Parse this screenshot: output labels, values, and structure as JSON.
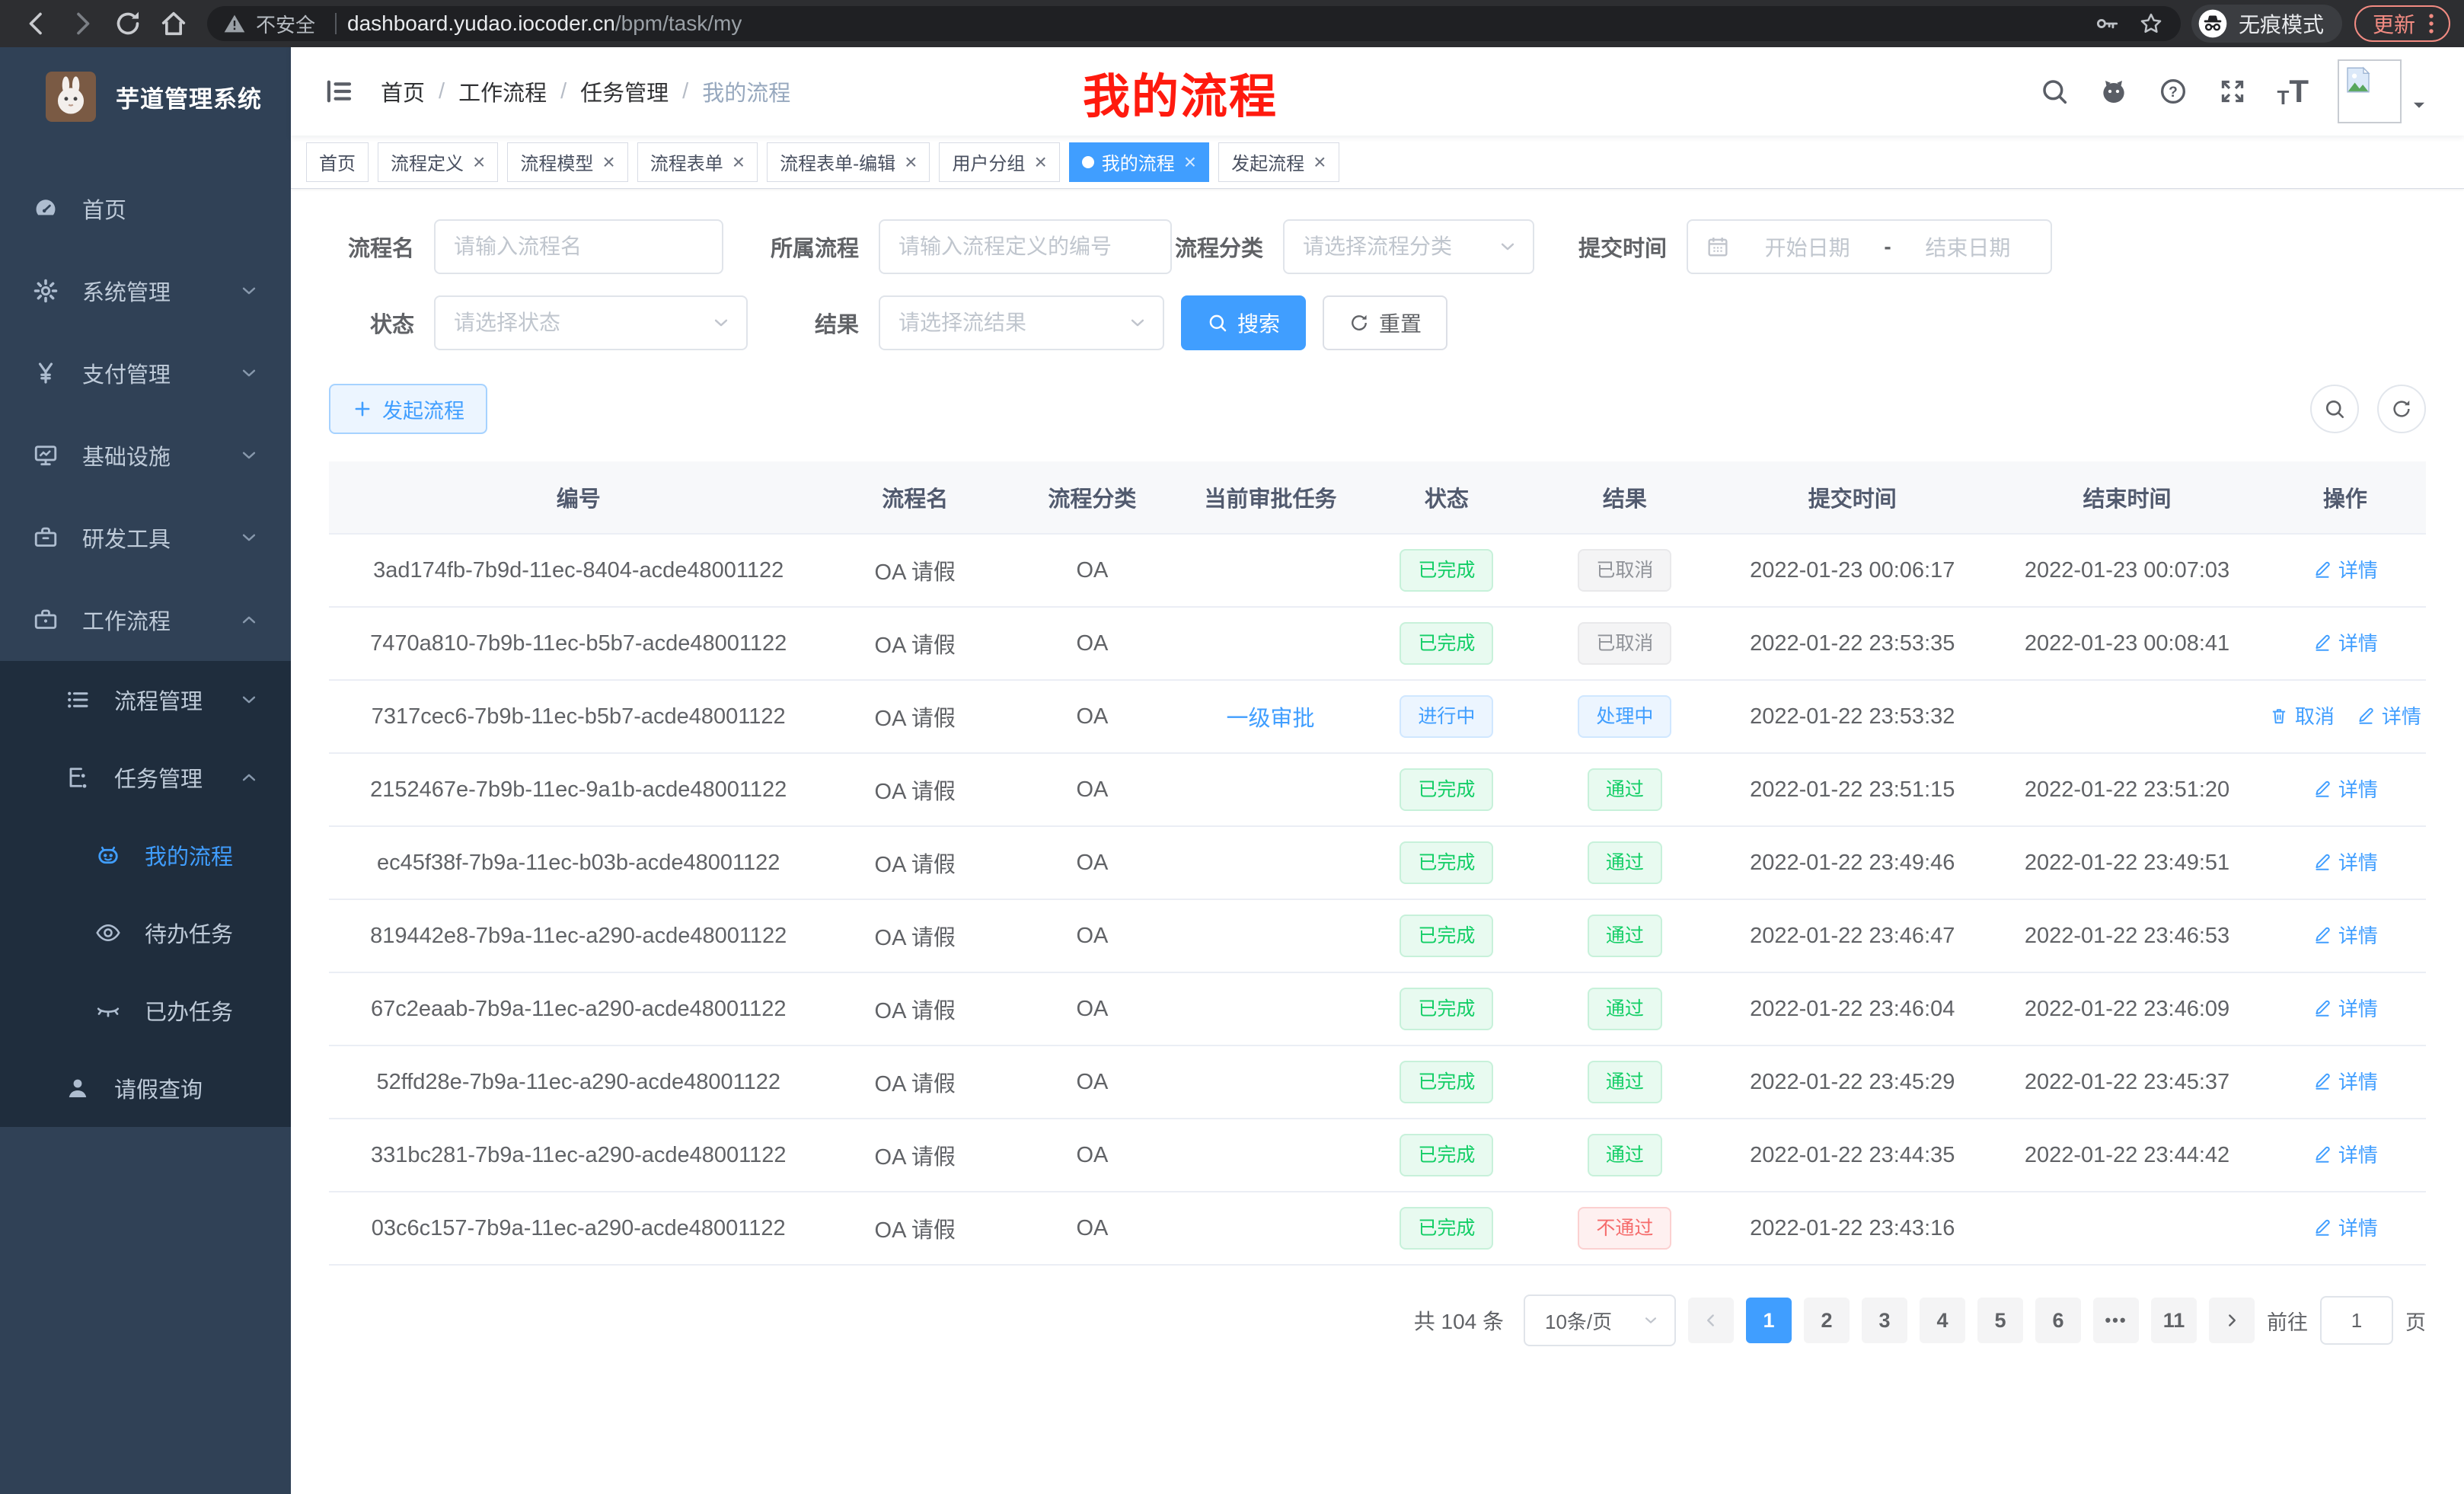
{
  "browser": {
    "security_label": "不安全",
    "url_host": "dashboard.yudao.iocoder.cn",
    "url_path": "/bpm/task/my",
    "incognito_label": "无痕模式",
    "update_label": "更新"
  },
  "annotation": {
    "text": "我的流程"
  },
  "colors": {
    "accent": "#409eff",
    "success": "#13ce66",
    "info": "#909399",
    "danger": "#f56c6c",
    "sidebar_bg": "#304156",
    "submenu_bg": "#1f2d3d",
    "annotation_red": "#ff1a0e",
    "update_red": "#f28b82"
  },
  "sidebar": {
    "app_title": "芋道管理系统",
    "items": [
      {
        "icon": "dashboard-icon",
        "label": "首页",
        "level": 0
      },
      {
        "icon": "gear-icon",
        "label": "系统管理",
        "level": 0,
        "arrow": "down"
      },
      {
        "icon": "yen-icon",
        "label": "支付管理",
        "level": 0,
        "arrow": "down"
      },
      {
        "icon": "infra-icon",
        "label": "基础设施",
        "level": 0,
        "arrow": "down"
      },
      {
        "icon": "tools-icon",
        "label": "研发工具",
        "level": 0,
        "arrow": "down"
      },
      {
        "icon": "workflow-icon",
        "label": "工作流程",
        "level": 0,
        "arrow": "up"
      },
      {
        "icon": "list-icon",
        "label": "流程管理",
        "level": 1,
        "dark": true,
        "arrow": "down"
      },
      {
        "icon": "tasks-icon",
        "label": "任务管理",
        "level": 1,
        "dark": true,
        "arrow": "up"
      },
      {
        "icon": "robot-icon",
        "label": "我的流程",
        "level": 2,
        "dark": true,
        "active": true
      },
      {
        "icon": "eye-icon",
        "label": "待办任务",
        "level": 2,
        "dark": true
      },
      {
        "icon": "eye-closed-icon",
        "label": "已办任务",
        "level": 2,
        "dark": true
      },
      {
        "icon": "user-icon",
        "label": "请假查询",
        "level": 1,
        "dark": true
      }
    ]
  },
  "navbar": {
    "breadcrumb": [
      "首页",
      "工作流程",
      "任务管理",
      "我的流程"
    ]
  },
  "tabs": [
    {
      "label": "首页",
      "closable": false,
      "active": false
    },
    {
      "label": "流程定义",
      "closable": true,
      "active": false
    },
    {
      "label": "流程模型",
      "closable": true,
      "active": false
    },
    {
      "label": "流程表单",
      "closable": true,
      "active": false
    },
    {
      "label": "流程表单-编辑",
      "closable": true,
      "active": false
    },
    {
      "label": "用户分组",
      "closable": true,
      "active": false
    },
    {
      "label": "我的流程",
      "closable": true,
      "active": true
    },
    {
      "label": "发起流程",
      "closable": true,
      "active": false
    }
  ],
  "filters": {
    "process_name": {
      "label": "流程名",
      "placeholder": "请输入流程名"
    },
    "process_def": {
      "label": "所属流程",
      "placeholder": "请输入流程定义的编号"
    },
    "category": {
      "label": "流程分类",
      "placeholder": "请选择流程分类"
    },
    "submit_time": {
      "label": "提交时间",
      "start_placeholder": "开始日期",
      "separator": "-",
      "end_placeholder": "结束日期"
    },
    "status": {
      "label": "状态",
      "placeholder": "请选择状态"
    },
    "result": {
      "label": "结果",
      "placeholder": "请选择流结果"
    },
    "search_label": "搜索",
    "reset_label": "重置"
  },
  "toolbar": {
    "create_label": "发起流程"
  },
  "table": {
    "headers": [
      "编号",
      "流程名",
      "流程分类",
      "当前审批任务",
      "状态",
      "结果",
      "提交时间",
      "结束时间",
      "操作"
    ],
    "rows": [
      {
        "id": "3ad174fb-7b9d-11ec-8404-acde48001122",
        "name": "OA 请假",
        "category": "OA",
        "task": "",
        "status": "已完成",
        "status_type": "success",
        "result": "已取消",
        "result_type": "info",
        "submit_time": "2022-01-23 00:06:17",
        "end_time": "2022-01-23 00:07:03",
        "actions": [
          {
            "icon": "edit-icon",
            "label": "详情"
          }
        ]
      },
      {
        "id": "7470a810-7b9b-11ec-b5b7-acde48001122",
        "name": "OA 请假",
        "category": "OA",
        "task": "",
        "status": "已完成",
        "status_type": "success",
        "result": "已取消",
        "result_type": "info",
        "submit_time": "2022-01-22 23:53:35",
        "end_time": "2022-01-23 00:08:41",
        "actions": [
          {
            "icon": "edit-icon",
            "label": "详情"
          }
        ]
      },
      {
        "id": "7317cec6-7b9b-11ec-b5b7-acde48001122",
        "name": "OA 请假",
        "category": "OA",
        "task": "一级审批",
        "status": "进行中",
        "status_type": "primary",
        "result": "处理中",
        "result_type": "primary",
        "submit_time": "2022-01-22 23:53:32",
        "end_time": "",
        "actions": [
          {
            "icon": "delete-icon",
            "label": "取消"
          },
          {
            "icon": "edit-icon",
            "label": "详情"
          }
        ]
      },
      {
        "id": "2152467e-7b9b-11ec-9a1b-acde48001122",
        "name": "OA 请假",
        "category": "OA",
        "task": "",
        "status": "已完成",
        "status_type": "success",
        "result": "通过",
        "result_type": "success",
        "submit_time": "2022-01-22 23:51:15",
        "end_time": "2022-01-22 23:51:20",
        "actions": [
          {
            "icon": "edit-icon",
            "label": "详情"
          }
        ]
      },
      {
        "id": "ec45f38f-7b9a-11ec-b03b-acde48001122",
        "name": "OA 请假",
        "category": "OA",
        "task": "",
        "status": "已完成",
        "status_type": "success",
        "result": "通过",
        "result_type": "success",
        "submit_time": "2022-01-22 23:49:46",
        "end_time": "2022-01-22 23:49:51",
        "actions": [
          {
            "icon": "edit-icon",
            "label": "详情"
          }
        ]
      },
      {
        "id": "819442e8-7b9a-11ec-a290-acde48001122",
        "name": "OA 请假",
        "category": "OA",
        "task": "",
        "status": "已完成",
        "status_type": "success",
        "result": "通过",
        "result_type": "success",
        "submit_time": "2022-01-22 23:46:47",
        "end_time": "2022-01-22 23:46:53",
        "actions": [
          {
            "icon": "edit-icon",
            "label": "详情"
          }
        ]
      },
      {
        "id": "67c2eaab-7b9a-11ec-a290-acde48001122",
        "name": "OA 请假",
        "category": "OA",
        "task": "",
        "status": "已完成",
        "status_type": "success",
        "result": "通过",
        "result_type": "success",
        "submit_time": "2022-01-22 23:46:04",
        "end_time": "2022-01-22 23:46:09",
        "actions": [
          {
            "icon": "edit-icon",
            "label": "详情"
          }
        ]
      },
      {
        "id": "52ffd28e-7b9a-11ec-a290-acde48001122",
        "name": "OA 请假",
        "category": "OA",
        "task": "",
        "status": "已完成",
        "status_type": "success",
        "result": "通过",
        "result_type": "success",
        "submit_time": "2022-01-22 23:45:29",
        "end_time": "2022-01-22 23:45:37",
        "actions": [
          {
            "icon": "edit-icon",
            "label": "详情"
          }
        ]
      },
      {
        "id": "331bc281-7b9a-11ec-a290-acde48001122",
        "name": "OA 请假",
        "category": "OA",
        "task": "",
        "status": "已完成",
        "status_type": "success",
        "result": "通过",
        "result_type": "success",
        "submit_time": "2022-01-22 23:44:35",
        "end_time": "2022-01-22 23:44:42",
        "actions": [
          {
            "icon": "edit-icon",
            "label": "详情"
          }
        ]
      },
      {
        "id": "03c6c157-7b9a-11ec-a290-acde48001122",
        "name": "OA 请假",
        "category": "OA",
        "task": "",
        "status": "已完成",
        "status_type": "success",
        "result": "不通过",
        "result_type": "danger",
        "submit_time": "2022-01-22 23:43:16",
        "end_time": "",
        "actions": [
          {
            "icon": "edit-icon",
            "label": "详情"
          }
        ]
      }
    ]
  },
  "pagination": {
    "total": "共 104 条",
    "page_size": "10条/页",
    "pages": [
      "1",
      "2",
      "3",
      "4",
      "5",
      "6",
      "•••",
      "11"
    ],
    "active_page": "1",
    "goto_label": "前往",
    "goto_value": "1",
    "goto_unit": "页"
  }
}
